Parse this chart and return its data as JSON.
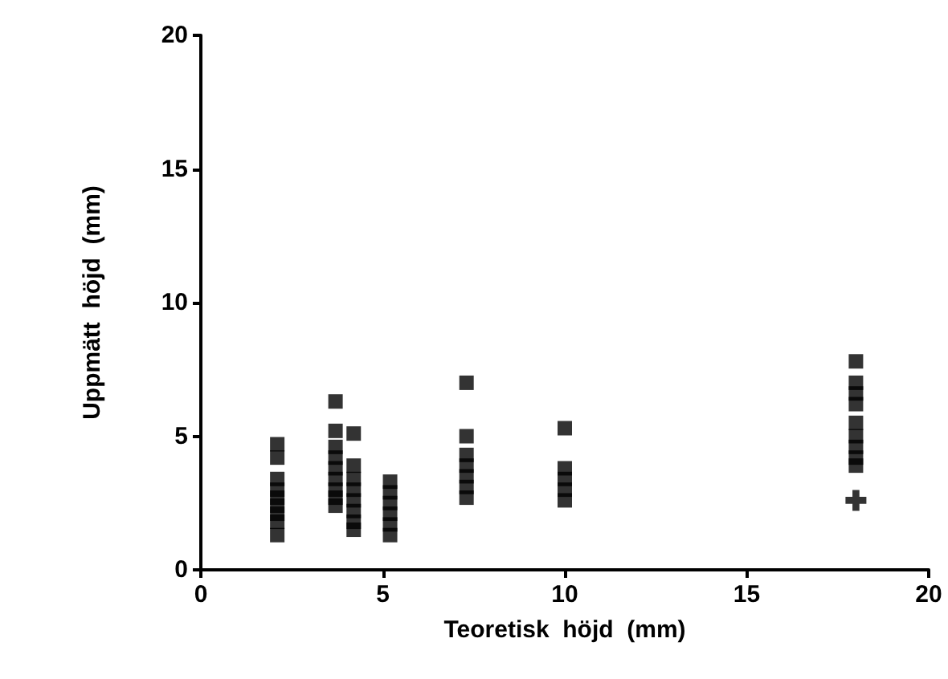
{
  "chart_data": {
    "type": "scatter",
    "xlabel": "Teoretisk  höjd  (mm)",
    "ylabel": "Uppmätt  höjd  (mm)",
    "xlim": [
      0,
      20
    ],
    "ylim": [
      0,
      20
    ],
    "xticks": [
      0,
      5,
      10,
      15,
      20
    ],
    "yticks": [
      0,
      5,
      10,
      15,
      20
    ],
    "grid": false,
    "series": [
      {
        "color": "#000000",
        "marker": "square",
        "x": [
          2.1,
          2.1,
          3.7,
          3.7,
          4.2,
          4.2,
          7.3,
          7.3,
          10,
          18
        ],
        "values": [
          4.7,
          4.2,
          6.3,
          5.2,
          5.1,
          3.9,
          7.0,
          5.0,
          5.3,
          7.8
        ]
      },
      {
        "color": "#000000",
        "marker": "square",
        "x": [
          2.1,
          2.1,
          2.1,
          2.1,
          2.1,
          2.1,
          2.1,
          3.7,
          3.7,
          3.7,
          3.7,
          3.7,
          3.7,
          3.7,
          4.2,
          4.2,
          4.2,
          4.2,
          4.2,
          4.2,
          5.2,
          5.2,
          5.2,
          5.2,
          5.2,
          5.2,
          7.3,
          7.3,
          7.3,
          7.3,
          7.3,
          10,
          10,
          10,
          10,
          18,
          18,
          18,
          18,
          18,
          18,
          18,
          18
        ],
        "values": [
          3.4,
          3.0,
          2.7,
          2.4,
          2.1,
          1.8,
          1.3,
          4.6,
          4.2,
          3.8,
          3.4,
          3.0,
          2.7,
          2.4,
          3.4,
          3.0,
          2.6,
          2.2,
          1.8,
          1.5,
          3.3,
          2.9,
          2.5,
          2.1,
          1.7,
          1.3,
          4.3,
          3.9,
          3.5,
          3.1,
          2.7,
          3.8,
          3.4,
          3.0,
          2.6,
          7.0,
          6.6,
          6.2,
          5.5,
          5.0,
          4.6,
          4.2,
          3.9
        ]
      },
      {
        "color": "#000000",
        "marker": "cross",
        "x": [
          18
        ],
        "values": [
          2.6
        ]
      }
    ]
  }
}
